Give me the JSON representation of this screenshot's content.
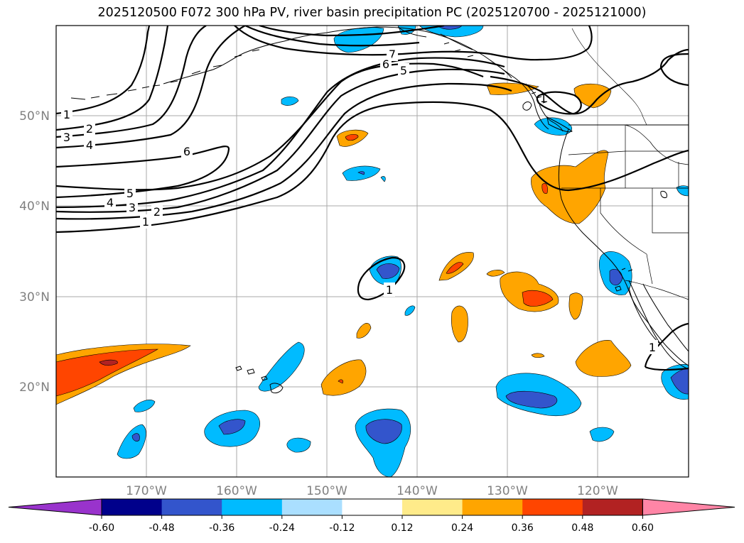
{
  "title": "2025120500 F072 300 hPa PV, river basin precipitation PC (2025120700 - 2025121000)",
  "map": {
    "lat_ticks": [
      "20°N",
      "30°N",
      "40°N",
      "50°N"
    ],
    "lon_ticks": [
      "170°W",
      "160°W",
      "150°W",
      "140°W",
      "130°W",
      "120°W"
    ]
  },
  "pv_contour_labels": [
    "1",
    "2",
    "3",
    "4",
    "5",
    "6",
    "7"
  ],
  "colorbar": {
    "labels": [
      "-0.60",
      "-0.48",
      "-0.36",
      "-0.24",
      "-0.12",
      "0.12",
      "0.24",
      "0.36",
      "0.48",
      "0.60"
    ],
    "colors": [
      "#9933cc",
      "#00008b",
      "#3355cc",
      "#00bbff",
      "#aadfff",
      "#ffffff",
      "#ffeb8a",
      "#ffa500",
      "#ff4500",
      "#b22222",
      "#ff85a6"
    ]
  },
  "colors": {
    "neg_light": "#00bbff",
    "neg_mid": "#3355cc",
    "pos_light": "#ffa500",
    "pos_mid": "#ff4500",
    "pos_dark": "#b22222"
  }
}
